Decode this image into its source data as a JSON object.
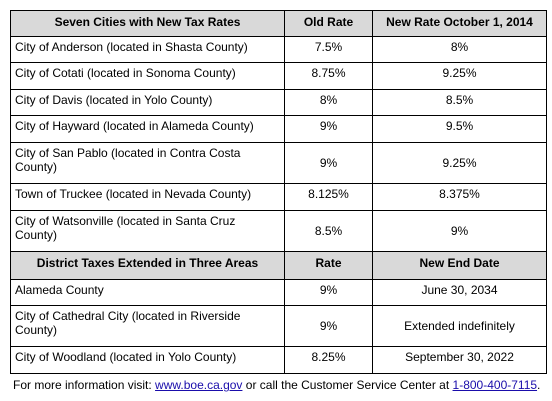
{
  "table": {
    "sections": [
      {
        "header": [
          "Seven Cities with New Tax Rates",
          "Old Rate",
          "New Rate October 1, 2014"
        ],
        "rows": [
          [
            "City of Anderson (located in Shasta County)",
            "7.5%",
            "8%"
          ],
          [
            "City of Cotati (located in Sonoma County)",
            "8.75%",
            "9.25%"
          ],
          [
            "City of Davis (located in Yolo County)",
            "8%",
            "8.5%"
          ],
          [
            "City of Hayward (located in Alameda County)",
            "9%",
            "9.5%"
          ],
          [
            "City of San Pablo (located in Contra Costa County)",
            "9%",
            "9.25%"
          ],
          [
            "Town of Truckee (located in Nevada County)",
            "8.125%",
            "8.375%"
          ],
          [
            "City of Watsonville (located in Santa Cruz County)",
            "8.5%",
            "9%"
          ]
        ]
      },
      {
        "header": [
          "District Taxes Extended in Three Areas",
          "Rate",
          "New End Date"
        ],
        "rows": [
          [
            "Alameda County",
            "9%",
            "June 30, 2034"
          ],
          [
            "City of Cathedral City (located in Riverside County)",
            "9%",
            "Extended indefinitely"
          ],
          [
            "City of Woodland (located in Yolo County)",
            "8.25%",
            "September 30, 2022"
          ]
        ]
      }
    ]
  },
  "footer": {
    "parts": [
      "For more information visit: ",
      "www.boe.ca.gov",
      " or call the Customer Service Center at ",
      "1-800-400-7115",
      "."
    ]
  }
}
